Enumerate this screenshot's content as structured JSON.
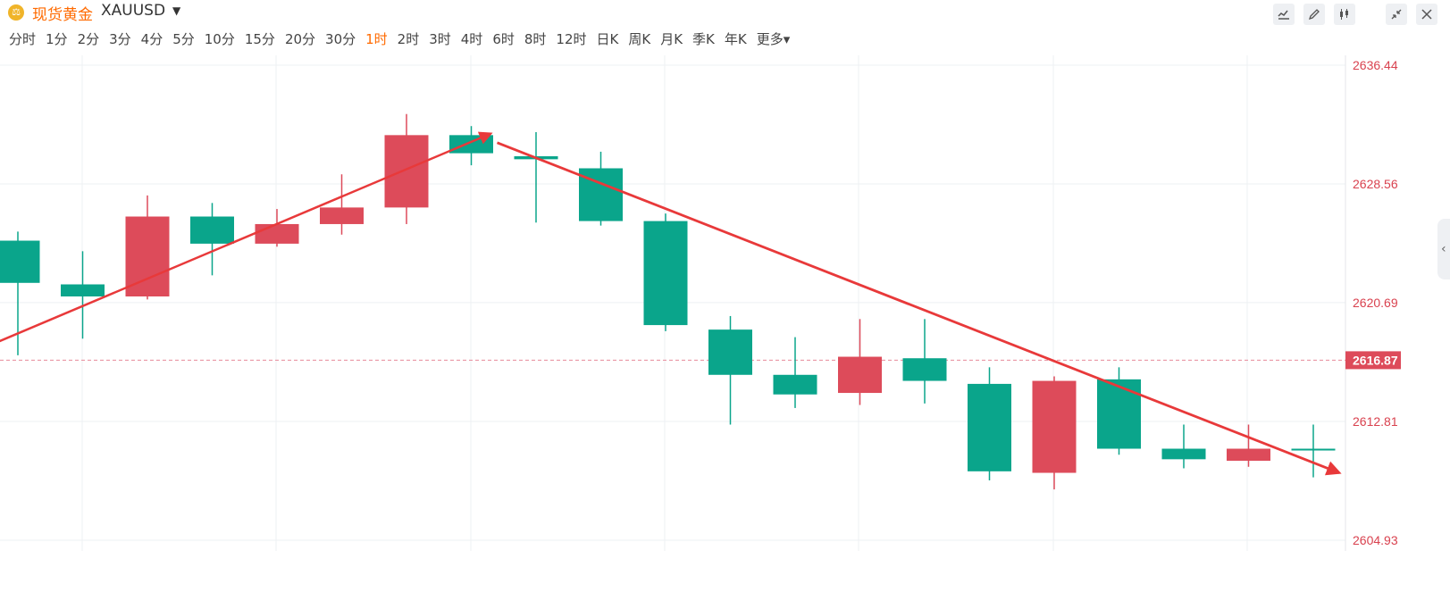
{
  "header": {
    "symbol_icon": "gold-bars-icon",
    "symbol_name": "现货黄金",
    "symbol_code": "XAUUSD",
    "dropdown_icon": "caret-down-icon"
  },
  "periods": [
    "分时",
    "1分",
    "2分",
    "3分",
    "4分",
    "5分",
    "10分",
    "15分",
    "20分",
    "30分",
    "1时",
    "2时",
    "3时",
    "4时",
    "6时",
    "8时",
    "12时",
    "日K",
    "周K",
    "月K",
    "季K",
    "年K",
    "更多"
  ],
  "active_period": "1时",
  "toolbar": {
    "icons": [
      "indicator-icon",
      "draw-pen-icon",
      "candlestick-type-icon",
      "collapse-icon",
      "close-icon"
    ]
  },
  "colors": {
    "up": "#dd4b5a",
    "down": "#0aa58b",
    "accent": "#ff6a00",
    "trendline": "#e8393a",
    "axis_text": "#d9424f",
    "grid": "#eef0f3"
  },
  "chart_data": {
    "type": "candlestick",
    "y_axis_ticks": [
      2636.44,
      2628.56,
      2620.69,
      2612.81,
      2604.93
    ],
    "ylim": [
      2604.93,
      2636.44
    ],
    "current_price": 2616.87,
    "candles": [
      {
        "open": 2624.8,
        "close": 2622.0,
        "high": 2625.4,
        "low": 2617.2
      },
      {
        "open": 2621.9,
        "close": 2621.1,
        "high": 2624.1,
        "low": 2618.3
      },
      {
        "open": 2621.1,
        "close": 2626.4,
        "high": 2627.8,
        "low": 2620.9
      },
      {
        "open": 2626.4,
        "close": 2624.6,
        "high": 2627.3,
        "low": 2622.5
      },
      {
        "open": 2624.6,
        "close": 2625.9,
        "high": 2626.9,
        "low": 2624.4
      },
      {
        "open": 2625.9,
        "close": 2627.0,
        "high": 2629.2,
        "low": 2625.2
      },
      {
        "open": 2627.0,
        "close": 2631.8,
        "high": 2633.2,
        "low": 2625.9
      },
      {
        "open": 2631.8,
        "close": 2630.6,
        "high": 2632.4,
        "low": 2629.8
      },
      {
        "open": 2630.4,
        "close": 2630.2,
        "high": 2632.0,
        "low": 2626.0
      },
      {
        "open": 2629.6,
        "close": 2626.1,
        "high": 2630.7,
        "low": 2625.8
      },
      {
        "open": 2626.1,
        "close": 2619.2,
        "high": 2626.6,
        "low": 2618.8
      },
      {
        "open": 2618.9,
        "close": 2615.9,
        "high": 2619.8,
        "low": 2612.6
      },
      {
        "open": 2615.9,
        "close": 2614.6,
        "high": 2618.4,
        "low": 2613.7
      },
      {
        "open": 2614.7,
        "close": 2617.1,
        "high": 2619.6,
        "low": 2613.9
      },
      {
        "open": 2617.0,
        "close": 2615.5,
        "high": 2619.6,
        "low": 2614.0
      },
      {
        "open": 2615.3,
        "close": 2609.5,
        "high": 2616.4,
        "low": 2608.9
      },
      {
        "open": 2609.4,
        "close": 2615.5,
        "high": 2615.8,
        "low": 2608.3
      },
      {
        "open": 2615.6,
        "close": 2611.0,
        "high": 2616.4,
        "low": 2610.6
      },
      {
        "open": 2611.0,
        "close": 2610.3,
        "high": 2612.6,
        "low": 2609.7
      },
      {
        "open": 2610.2,
        "close": 2611.0,
        "high": 2612.6,
        "low": 2609.8
      },
      {
        "open": 2611.0,
        "close": 2610.9,
        "high": 2612.6,
        "low": 2609.1
      }
    ],
    "trendlines": [
      {
        "from": {
          "candle": -0.3,
          "price": 2618.1
        },
        "to": {
          "candle": 7.3,
          "price": 2631.9
        },
        "arrow": true
      },
      {
        "from": {
          "candle": 7.4,
          "price": 2631.3
        },
        "to": {
          "candle": 20.4,
          "price": 2609.4
        },
        "arrow": true
      }
    ]
  }
}
